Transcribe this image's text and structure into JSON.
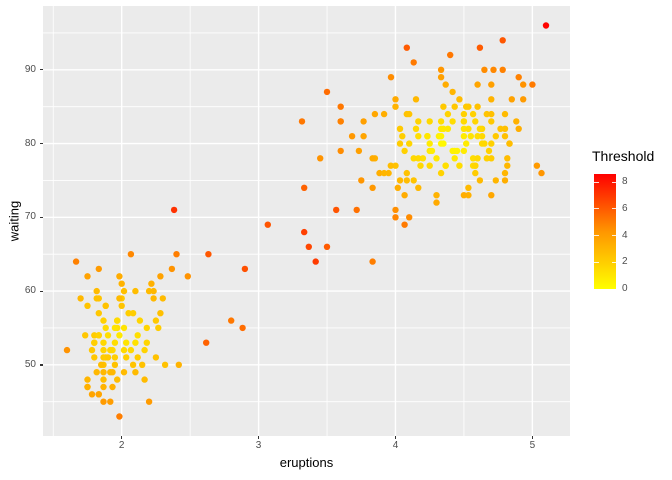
{
  "chart_data": {
    "type": "scatter",
    "title": "",
    "xlabel": "eruptions",
    "ylabel": "waiting",
    "x_ticks": [
      2,
      3,
      4,
      5
    ],
    "x_minor_ticks": [
      1.5,
      2.5,
      3.5,
      4.5
    ],
    "y_ticks": [
      50,
      60,
      70,
      80,
      90
    ],
    "y_minor_ticks": [
      45,
      55,
      65,
      75,
      85,
      95
    ],
    "xlim": [
      1.425,
      5.275
    ],
    "ylim": [
      40.35,
      98.65
    ],
    "grid": true,
    "panel_bg": "#EBEBEB",
    "grid_color": "#FFFFFF",
    "tick_label_color": "#4D4D4D",
    "point_radius": 3.2,
    "legend": {
      "title": "Threshold",
      "position": "right",
      "ticks": [
        0,
        2,
        4,
        6,
        8
      ],
      "min": 0,
      "max": 8.6,
      "low_color": "#FFFF00",
      "mid_color": "#FF9600",
      "high_color": "#FF0000"
    },
    "points": [
      [
        3.6,
        79,
        4.6
      ],
      [
        1.8,
        54,
        2.1
      ],
      [
        3.333,
        74,
        5.8
      ],
      [
        2.283,
        62,
        3.8
      ],
      [
        4.533,
        85,
        2.3
      ],
      [
        2.883,
        55,
        5.5
      ],
      [
        4.7,
        88,
        3.9
      ],
      [
        3.6,
        85,
        5.2
      ],
      [
        1.95,
        51,
        2.0
      ],
      [
        4.35,
        85,
        2.2
      ],
      [
        1.833,
        54,
        1.8
      ],
      [
        3.917,
        84,
        3.3
      ],
      [
        4.2,
        78,
        1.3
      ],
      [
        1.75,
        47,
        3.4
      ],
      [
        4.7,
        83,
        2.2
      ],
      [
        2.167,
        52,
        1.8
      ],
      [
        1.75,
        62,
        3.8
      ],
      [
        4.8,
        84,
        2.8
      ],
      [
        1.6,
        52,
        4.4
      ],
      [
        4.25,
        79,
        0.9
      ],
      [
        1.8,
        51,
        2.3
      ],
      [
        1.75,
        47,
        3.2
      ],
      [
        3.45,
        78,
        4.4
      ],
      [
        3.067,
        69,
        6.2
      ],
      [
        4.533,
        74,
        2.8
      ],
      [
        3.6,
        83,
        4.9
      ],
      [
        1.967,
        55,
        1.3
      ],
      [
        4.083,
        76,
        2.5
      ],
      [
        3.85,
        78,
        3.2
      ],
      [
        4.433,
        79,
        0.5
      ],
      [
        4.3,
        73,
        3.1
      ],
      [
        4.467,
        77,
        1.4
      ],
      [
        3.367,
        66,
        6.6
      ],
      [
        4.033,
        80,
        2.1
      ],
      [
        3.833,
        74,
        4.2
      ],
      [
        2.017,
        52,
        1.5
      ],
      [
        1.867,
        48,
        2.7
      ],
      [
        4.833,
        80,
        2.7
      ],
      [
        1.833,
        59,
        2.4
      ],
      [
        4.783,
        90,
        4.9
      ],
      [
        4.35,
        80,
        0.3
      ],
      [
        1.883,
        58,
        1.9
      ],
      [
        4.567,
        84,
        1.9
      ],
      [
        1.75,
        58,
        2.4
      ],
      [
        4.533,
        73,
        3.2
      ],
      [
        3.317,
        83,
        5.2
      ],
      [
        3.833,
        64,
        5.0
      ],
      [
        2.1,
        53,
        1.2
      ],
      [
        4.633,
        82,
        1.7
      ],
      [
        2.0,
        59,
        2.2
      ],
      [
        4.8,
        75,
        3.3
      ],
      [
        4.716,
        90,
        4.7
      ],
      [
        1.833,
        54,
        1.8
      ],
      [
        4.833,
        80,
        2.7
      ],
      [
        1.733,
        54,
        2.3
      ],
      [
        4.883,
        83,
        3.2
      ],
      [
        3.717,
        71,
        5.4
      ],
      [
        1.667,
        64,
        4.9
      ],
      [
        4.567,
        77,
        1.5
      ],
      [
        4.317,
        81,
        0.6
      ],
      [
        2.233,
        59,
        2.9
      ],
      [
        4.5,
        84,
        1.9
      ],
      [
        1.75,
        48,
        3.0
      ],
      [
        4.8,
        82,
        2.6
      ],
      [
        1.817,
        60,
        2.8
      ],
      [
        4.4,
        92,
        5.2
      ],
      [
        4.167,
        78,
        1.5
      ],
      [
        4.7,
        78,
        2.1
      ],
      [
        2.067,
        65,
        4.7
      ],
      [
        4.7,
        73,
        3.6
      ],
      [
        4.033,
        82,
        2.2
      ],
      [
        1.967,
        56,
        1.5
      ],
      [
        4.5,
        79,
        0.8
      ],
      [
        4.0,
        71,
        4.5
      ],
      [
        1.983,
        62,
        3.4
      ],
      [
        5.067,
        76,
        4.3
      ],
      [
        2.017,
        60,
        2.6
      ],
      [
        4.567,
        78,
        1.4
      ],
      [
        3.883,
        76,
        3.3
      ],
      [
        3.6,
        83,
        4.9
      ],
      [
        4.133,
        75,
        2.4
      ],
      [
        4.333,
        82,
        0.9
      ],
      [
        4.1,
        70,
        4.6
      ],
      [
        2.633,
        65,
        6.1
      ],
      [
        4.067,
        73,
        3.4
      ],
      [
        4.933,
        88,
        4.4
      ],
      [
        3.95,
        76,
        3.0
      ],
      [
        4.517,
        80,
        0.8
      ],
      [
        2.167,
        48,
        2.8
      ],
      [
        4.0,
        86,
        3.5
      ],
      [
        2.2,
        60,
        2.8
      ],
      [
        4.333,
        90,
        4.3
      ],
      [
        1.867,
        50,
        2.5
      ],
      [
        4.817,
        78,
        2.7
      ],
      [
        1.833,
        63,
        4.1
      ],
      [
        4.3,
        72,
        3.5
      ],
      [
        4.667,
        84,
        2.4
      ],
      [
        3.75,
        75,
        4.3
      ],
      [
        1.867,
        51,
        2.2
      ],
      [
        4.9,
        82,
        3.3
      ],
      [
        2.483,
        62,
        4.4
      ],
      [
        4.367,
        88,
        3.4
      ],
      [
        2.1,
        49,
        2.8
      ],
      [
        4.5,
        83,
        1.5
      ],
      [
        4.05,
        81,
        2.0
      ],
      [
        1.867,
        47,
        3.1
      ],
      [
        4.7,
        84,
        2.6
      ],
      [
        1.783,
        52,
        2.3
      ],
      [
        4.85,
        86,
        3.8
      ],
      [
        3.683,
        81,
        4.2
      ],
      [
        4.733,
        75,
        3.0
      ],
      [
        2.3,
        59,
        2.8
      ],
      [
        4.9,
        89,
        4.9
      ],
      [
        4.417,
        79,
        0.5
      ],
      [
        1.7,
        59,
        2.9
      ],
      [
        4.633,
        81,
        1.6
      ],
      [
        2.317,
        50,
        2.5
      ],
      [
        4.6,
        85,
        2.5
      ],
      [
        1.817,
        59,
        2.5
      ],
      [
        4.417,
        87,
        3.0
      ],
      [
        2.617,
        53,
        5.8
      ],
      [
        4.067,
        69,
        5.1
      ],
      [
        4.25,
        77,
        1.5
      ],
      [
        1.967,
        56,
        1.5
      ],
      [
        4.6,
        88,
        3.7
      ],
      [
        3.767,
        81,
        3.7
      ],
      [
        1.917,
        45,
        4.0
      ],
      [
        4.5,
        82,
        1.2
      ],
      [
        2.267,
        55,
        2.1
      ],
      [
        4.65,
        90,
        4.6
      ],
      [
        1.867,
        45,
        4.1
      ],
      [
        4.167,
        83,
        1.8
      ],
      [
        2.8,
        56,
        5.2
      ],
      [
        4.333,
        89,
        3.9
      ],
      [
        1.833,
        46,
        3.6
      ],
      [
        4.383,
        82,
        0.9
      ],
      [
        1.883,
        51,
        2.1
      ],
      [
        4.933,
        86,
        4.1
      ],
      [
        2.033,
        53,
        1.1
      ],
      [
        3.733,
        79,
        3.9
      ],
      [
        4.233,
        81,
        1.0
      ],
      [
        2.233,
        60,
        2.9
      ],
      [
        4.533,
        82,
        1.3
      ],
      [
        4.817,
        77,
        2.9
      ],
      [
        4.333,
        76,
        1.8
      ],
      [
        1.983,
        59,
        2.8
      ],
      [
        4.633,
        80,
        1.5
      ],
      [
        2.017,
        49,
        2.8
      ],
      [
        5.1,
        96,
        8.5
      ],
      [
        1.8,
        53,
        2.0
      ],
      [
        5.033,
        77,
        4.1
      ],
      [
        4.0,
        77,
        2.5
      ],
      [
        2.4,
        65,
        5.0
      ],
      [
        4.6,
        81,
        1.4
      ],
      [
        3.567,
        71,
        6.2
      ],
      [
        4.0,
        70,
        4.8
      ],
      [
        4.5,
        81,
        0.8
      ],
      [
        4.083,
        93,
        6.0
      ],
      [
        1.8,
        53,
        2.0
      ],
      [
        3.967,
        89,
        4.6
      ],
      [
        2.2,
        45,
        4.1
      ],
      [
        4.15,
        86,
        2.9
      ],
      [
        2.0,
        58,
        2.4
      ],
      [
        3.833,
        78,
        3.4
      ],
      [
        3.5,
        66,
        6.0
      ],
      [
        4.583,
        76,
        2.1
      ],
      [
        2.367,
        63,
        4.4
      ],
      [
        5.0,
        88,
        5.1
      ],
      [
        1.933,
        52,
        1.6
      ],
      [
        4.617,
        93,
        6.0
      ],
      [
        1.917,
        49,
        2.9
      ],
      [
        2.083,
        57,
        2.0
      ],
      [
        4.583,
        77,
        1.7
      ],
      [
        3.333,
        68,
        6.8
      ],
      [
        4.167,
        81,
        1.3
      ],
      [
        4.333,
        81,
        0.5
      ],
      [
        4.5,
        73,
        3.3
      ],
      [
        2.417,
        50,
        3.1
      ],
      [
        4.0,
        85,
        3.1
      ],
      [
        4.167,
        74,
        2.9
      ],
      [
        1.883,
        55,
        1.5
      ],
      [
        4.583,
        77,
        1.7
      ],
      [
        4.25,
        83,
        1.6
      ],
      [
        3.767,
        83,
        3.9
      ],
      [
        2.033,
        51,
        2.0
      ],
      [
        4.433,
        78,
        0.9
      ],
      [
        4.083,
        84,
        2.5
      ],
      [
        1.833,
        46,
        3.7
      ],
      [
        4.417,
        83,
        1.4
      ],
      [
        2.183,
        55,
        1.7
      ],
      [
        4.8,
        81,
        2.6
      ],
      [
        1.833,
        57,
        2.3
      ],
      [
        4.8,
        76,
        3.0
      ],
      [
        4.1,
        84,
        2.4
      ],
      [
        3.966,
        77,
        2.7
      ],
      [
        4.233,
        81,
        1.0
      ],
      [
        3.5,
        87,
        5.5
      ],
      [
        4.366,
        77,
        1.4
      ],
      [
        2.25,
        51,
        2.5
      ],
      [
        4.667,
        78,
        1.9
      ],
      [
        2.1,
        60,
        2.7
      ],
      [
        4.35,
        82,
        0.9
      ],
      [
        4.133,
        91,
        5.1
      ],
      [
        1.867,
        53,
        1.6
      ],
      [
        4.6,
        78,
        1.5
      ],
      [
        1.783,
        46,
        3.7
      ],
      [
        4.367,
        77,
        1.3
      ],
      [
        3.85,
        84,
        3.6
      ],
      [
        1.933,
        49,
        2.9
      ],
      [
        4.5,
        83,
        1.5
      ],
      [
        2.383,
        71,
        7.2
      ],
      [
        4.7,
        80,
        1.9
      ],
      [
        1.867,
        49,
        2.9
      ],
      [
        4.033,
        75,
        2.9
      ],
      [
        3.417,
        64,
        6.9
      ],
      [
        2.9,
        63,
        6.3
      ],
      [
        1.983,
        43,
        5.0
      ],
      [
        4.783,
        94,
        6.1
      ],
      [
        4.333,
        80,
        0.3
      ],
      [
        2.017,
        55,
        1.1
      ],
      [
        4.617,
        82,
        1.5
      ],
      [
        1.95,
        50,
        2.5
      ],
      [
        4.133,
        78,
        1.6
      ],
      [
        3.917,
        76,
        3.0
      ],
      [
        2.117,
        54,
        1.3
      ],
      [
        4.517,
        85,
        2.2
      ],
      [
        1.917,
        52,
        1.7
      ],
      [
        4.45,
        79,
        0.5
      ],
      [
        2.05,
        57,
        2.0
      ],
      [
        4.7,
        86,
        3.1
      ],
      [
        1.867,
        56,
        1.9
      ],
      [
        4.25,
        80,
        0.8
      ],
      [
        2.15,
        50,
        2.5
      ],
      [
        4.583,
        83,
        1.7
      ],
      [
        1.95,
        53,
        1.4
      ],
      [
        4.067,
        79,
        1.9
      ],
      [
        2.217,
        61,
        3.2
      ],
      [
        4.383,
        84,
        1.8
      ],
      [
        1.817,
        49,
        2.9
      ],
      [
        4.767,
        82,
        2.5
      ],
      [
        2.067,
        52,
        1.6
      ],
      [
        4.183,
        77,
        1.6
      ],
      [
        1.9,
        54,
        1.3
      ],
      [
        4.65,
        80,
        1.6
      ],
      [
        2.283,
        57,
        2.6
      ],
      [
        4.083,
        75,
        2.7
      ],
      [
        1.967,
        48,
        2.7
      ],
      [
        4.433,
        85,
        2.3
      ],
      [
        2.133,
        56,
        1.7
      ],
      [
        4.3,
        78,
        1.0
      ],
      [
        1.85,
        50,
        2.7
      ],
      [
        4.55,
        81,
        1.1
      ],
      [
        2.0,
        61,
        3.1
      ],
      [
        4.15,
        82,
        1.6
      ],
      [
        1.933,
        47,
        3.2
      ],
      [
        4.683,
        79,
        1.9
      ],
      [
        2.183,
        53,
        1.7
      ],
      [
        4.017,
        74,
        3.3
      ],
      [
        1.883,
        58,
        2.5
      ],
      [
        4.467,
        86,
        2.8
      ],
      [
        2.117,
        51,
        2.1
      ],
      [
        4.617,
        75,
        2.8
      ],
      [
        1.983,
        54,
        0.9
      ],
      [
        4.333,
        83,
        1.4
      ],
      [
        2.25,
        56,
        2.2
      ],
      [
        4.1,
        80,
        1.7
      ],
      [
        1.867,
        52,
        1.8
      ],
      [
        4.733,
        81,
        2.2
      ],
      [
        1.95,
        55,
        1.1
      ],
      [
        4.267,
        79,
        0.7
      ],
      [
        2.083,
        50,
        2.4
      ],
      [
        1.9,
        51,
        2.2
      ]
    ]
  }
}
